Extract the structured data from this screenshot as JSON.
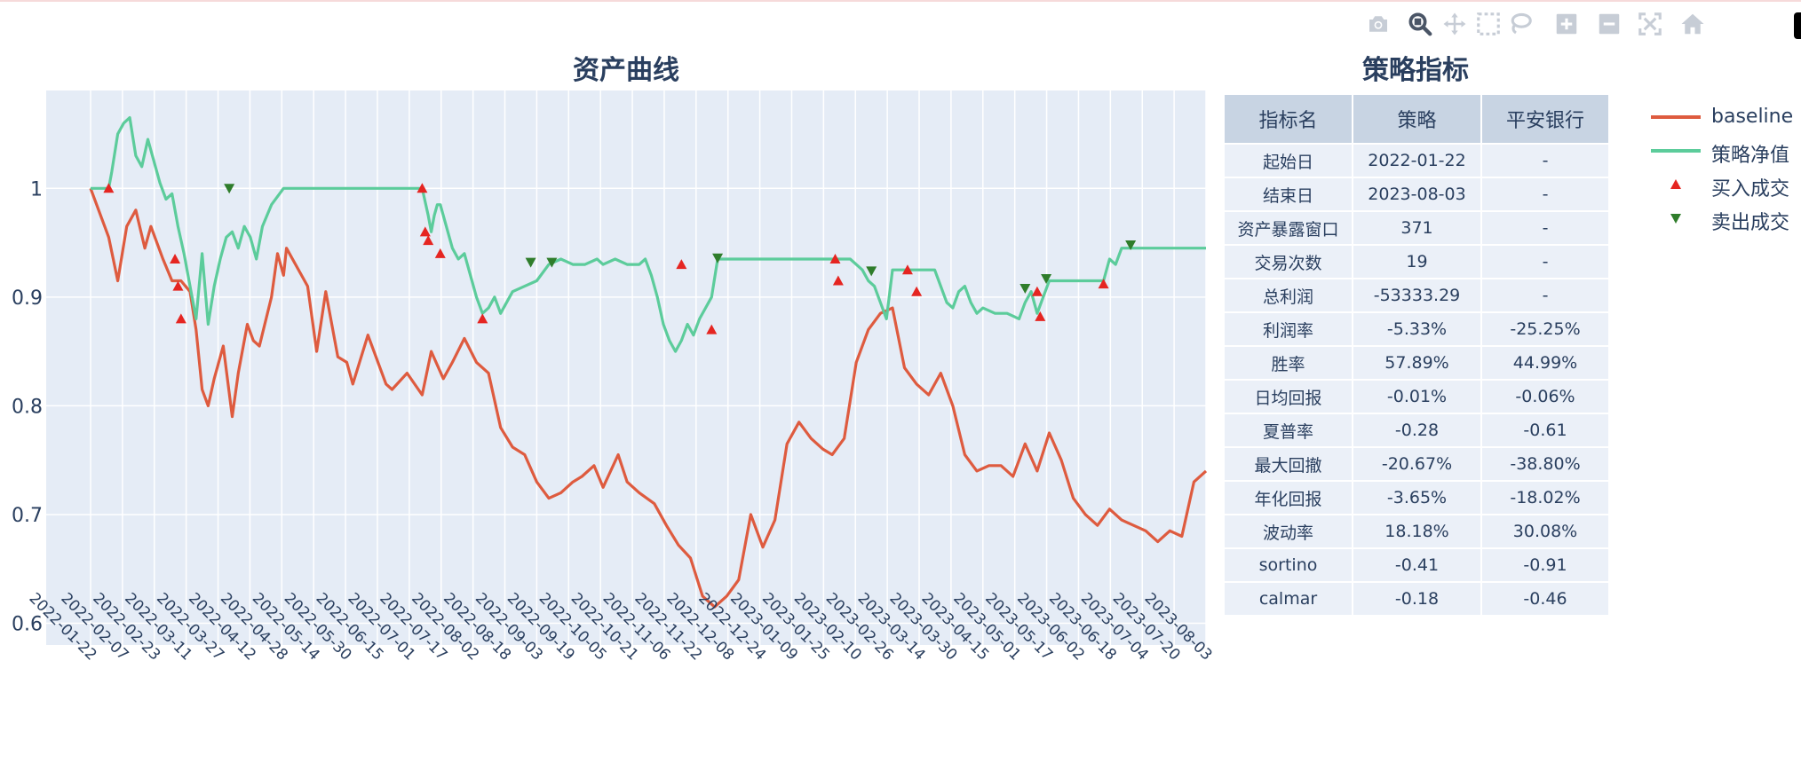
{
  "toolbar": {
    "buttons": [
      {
        "icon": "camera-icon",
        "tip": "Download plot as a png"
      },
      {
        "icon": "zoom-icon",
        "tip": "Zoom"
      },
      {
        "icon": "pan-icon",
        "tip": "Pan"
      },
      {
        "icon": "box-select-icon",
        "tip": "Box Select"
      },
      {
        "icon": "lasso-select-icon",
        "tip": "Lasso Select"
      },
      {
        "icon": "zoom-in-icon",
        "tip": "Zoom in"
      },
      {
        "icon": "zoom-out-icon",
        "tip": "Zoom out"
      },
      {
        "icon": "autoscale-icon",
        "tip": "Autoscale"
      },
      {
        "icon": "home-icon",
        "tip": "Reset axes"
      }
    ]
  },
  "colors": {
    "baseline": "#de5b3f",
    "strategy": "#5ccc9b",
    "buy": "#e52521",
    "sell": "#2f7d2b",
    "plot_bg": "#e5ecf6",
    "grid": "#ffffff",
    "text": "#2a3f5f"
  },
  "chart_data": {
    "type": "line",
    "title": "资产曲线",
    "ylim": [
      0.58,
      1.09
    ],
    "yticks": [
      0.6,
      0.7,
      0.8,
      0.9,
      1
    ],
    "ytick_labels": [
      "0.6",
      "0.7",
      "0.8",
      "0.9",
      "1"
    ],
    "x_start": "2022-01-22",
    "x_end": "2023-08-03",
    "grid": true,
    "legend_position": "right",
    "series": [
      {
        "name": "baseline",
        "key": "baseline",
        "x": [
          0,
          6,
          9,
          12,
          15,
          18,
          20,
          24,
          27,
          30,
          33,
          35,
          37,
          39,
          41,
          44,
          47,
          49,
          52,
          54,
          56,
          60,
          62,
          64,
          65,
          68,
          72,
          75,
          78,
          82,
          85,
          87,
          92,
          98,
          100,
          105,
          110,
          113,
          117,
          120,
          124,
          128,
          132,
          136,
          140,
          144,
          148,
          152,
          156,
          160,
          163,
          167,
          170,
          175,
          178,
          182,
          187,
          191,
          195,
          199,
          203,
          207,
          211,
          215,
          219,
          223,
          227,
          231,
          235,
          239,
          243,
          246,
          250,
          254,
          258,
          262,
          266,
          270,
          274,
          278,
          282,
          286,
          290,
          294,
          298,
          302,
          306,
          310,
          314,
          318,
          322,
          326,
          330,
          334,
          338,
          342,
          346,
          350,
          354,
          358,
          362,
          366,
          370
        ],
        "values": [
          1.0,
          0.955,
          0.915,
          0.965,
          0.98,
          0.945,
          0.965,
          0.935,
          0.915,
          0.915,
          0.905,
          0.87,
          0.815,
          0.8,
          0.825,
          0.855,
          0.79,
          0.83,
          0.875,
          0.86,
          0.855,
          0.9,
          0.94,
          0.92,
          0.945,
          0.93,
          0.91,
          0.85,
          0.905,
          0.845,
          0.84,
          0.82,
          0.865,
          0.82,
          0.815,
          0.83,
          0.81,
          0.85,
          0.825,
          0.84,
          0.862,
          0.84,
          0.83,
          0.78,
          0.762,
          0.755,
          0.73,
          0.715,
          0.72,
          0.73,
          0.735,
          0.745,
          0.725,
          0.755,
          0.73,
          0.72,
          0.71,
          0.69,
          0.672,
          0.66,
          0.625,
          0.615,
          0.625,
          0.64,
          0.7,
          0.67,
          0.695,
          0.765,
          0.785,
          0.77,
          0.76,
          0.755,
          0.77,
          0.84,
          0.87,
          0.885,
          0.89,
          0.835,
          0.82,
          0.81,
          0.83,
          0.8,
          0.755,
          0.74,
          0.745,
          0.745,
          0.735,
          0.765,
          0.74,
          0.775,
          0.75,
          0.715,
          0.7,
          0.69,
          0.705,
          0.695,
          0.69,
          0.685,
          0.675,
          0.685,
          0.68,
          0.73,
          0.74
        ]
      },
      {
        "name": "策略净值",
        "key": "strategy",
        "x": [
          0,
          6,
          7,
          9,
          11,
          13,
          15,
          17,
          19,
          21,
          23,
          25,
          27,
          29,
          31,
          33,
          35,
          37,
          39,
          41,
          43,
          45,
          47,
          49,
          51,
          53,
          55,
          57,
          60,
          64,
          66,
          68,
          72,
          110,
          112,
          113,
          114,
          115,
          116,
          118,
          120,
          122,
          124,
          126,
          128,
          130,
          132,
          134,
          136,
          140,
          144,
          148,
          152,
          156,
          160,
          164,
          168,
          170,
          174,
          178,
          182,
          184,
          186,
          188,
          190,
          192,
          194,
          196,
          198,
          200,
          202,
          204,
          206,
          208,
          210,
          212,
          214,
          218,
          220,
          222,
          224,
          226,
          228,
          230,
          232,
          234,
          236,
          238,
          240,
          242,
          244,
          246,
          248,
          252,
          254,
          256,
          258,
          260,
          264,
          268,
          272,
          276,
          280,
          284,
          288,
          292,
          296,
          300,
          304,
          308,
          312,
          316,
          320,
          324,
          328,
          332,
          340,
          344,
          348,
          352,
          356,
          360,
          364,
          370
        ],
        "values": [
          1.0,
          1.0,
          1.015,
          1.05,
          1.06,
          1.065,
          1.03,
          1.02,
          1.045,
          1.025,
          1.005,
          0.99,
          0.995,
          0.965,
          0.94,
          0.91,
          0.88,
          0.94,
          0.875,
          0.91,
          0.935,
          0.955,
          0.96,
          0.945,
          0.965,
          0.955,
          0.935,
          0.965,
          0.985,
          1.0,
          1.0,
          1.0,
          1.0,
          1.0,
          0.975,
          0.96,
          0.975,
          0.985,
          0.985,
          0.965,
          0.945,
          0.935,
          0.94,
          0.92,
          0.9,
          0.885,
          0.89,
          0.9,
          0.885,
          0.905,
          0.91,
          0.915,
          0.93,
          0.935,
          0.93,
          0.93,
          0.935,
          0.93,
          0.935,
          0.93,
          0.93,
          0.935,
          0.92,
          0.9,
          0.875,
          0.86,
          0.85,
          0.86,
          0.875,
          0.865,
          0.88,
          0.89,
          0.9,
          0.935,
          0.935,
          0.935,
          0.935,
          0.935,
          0.935,
          0.935,
          0.935,
          0.935,
          0.935,
          0.935,
          0.935,
          0.935,
          0.935,
          0.935,
          0.935,
          0.935,
          0.935,
          0.935,
          0.935,
          0.935,
          0.935,
          0.935,
          0.935,
          0.935,
          0.935,
          0.935,
          0.935,
          0.935,
          0.935,
          0.935,
          0.935,
          0.935,
          0.925,
          0.915,
          0.9,
          0.885,
          0.895,
          0.91,
          0.93,
          0.925,
          0.915,
          0.925,
          0.91,
          0.895,
          0.885,
          0.895,
          0.91,
          0.9,
          0.915,
          0.945
        ],
        "tail": [
          {
            "x": 252,
            "y": 0.935
          },
          {
            "x": 254,
            "y": 0.93
          },
          {
            "x": 256,
            "y": 0.925
          },
          {
            "x": 258,
            "y": 0.915
          },
          {
            "x": 260,
            "y": 0.91
          },
          {
            "x": 262,
            "y": 0.895
          },
          {
            "x": 264,
            "y": 0.88
          },
          {
            "x": 266,
            "y": 0.925
          },
          {
            "x": 272,
            "y": 0.925
          },
          {
            "x": 276,
            "y": 0.925
          },
          {
            "x": 280,
            "y": 0.925
          },
          {
            "x": 282,
            "y": 0.91
          },
          {
            "x": 284,
            "y": 0.895
          },
          {
            "x": 286,
            "y": 0.89
          },
          {
            "x": 288,
            "y": 0.905
          },
          {
            "x": 290,
            "y": 0.91
          },
          {
            "x": 292,
            "y": 0.895
          },
          {
            "x": 294,
            "y": 0.885
          },
          {
            "x": 296,
            "y": 0.89
          },
          {
            "x": 300,
            "y": 0.885
          },
          {
            "x": 304,
            "y": 0.885
          },
          {
            "x": 308,
            "y": 0.88
          },
          {
            "x": 310,
            "y": 0.895
          },
          {
            "x": 312,
            "y": 0.905
          },
          {
            "x": 314,
            "y": 0.885
          },
          {
            "x": 316,
            "y": 0.9
          },
          {
            "x": 318,
            "y": 0.915
          },
          {
            "x": 322,
            "y": 0.915
          },
          {
            "x": 330,
            "y": 0.915
          },
          {
            "x": 336,
            "y": 0.915
          },
          {
            "x": 338,
            "y": 0.935
          },
          {
            "x": 340,
            "y": 0.93
          },
          {
            "x": 342,
            "y": 0.945
          },
          {
            "x": 346,
            "y": 0.945
          },
          {
            "x": 370,
            "y": 0.945
          }
        ]
      }
    ],
    "markers": {
      "buy": {
        "name": "买入成交",
        "points": [
          [
            6,
            1.0
          ],
          [
            28,
            0.935
          ],
          [
            29,
            0.91
          ],
          [
            30,
            0.88
          ],
          [
            110,
            1.0
          ],
          [
            111,
            0.96
          ],
          [
            112,
            0.952
          ],
          [
            116,
            0.94
          ],
          [
            130,
            0.88
          ],
          [
            196,
            0.93
          ],
          [
            206,
            0.87
          ],
          [
            247,
            0.935
          ],
          [
            248,
            0.915
          ],
          [
            271,
            0.925
          ],
          [
            274,
            0.905
          ],
          [
            314,
            0.905
          ],
          [
            315,
            0.882
          ],
          [
            336,
            0.912
          ]
        ]
      },
      "sell": {
        "name": "卖出成交",
        "points": [
          [
            46,
            1.0
          ],
          [
            146,
            0.932
          ],
          [
            153,
            0.932
          ],
          [
            208,
            0.936
          ],
          [
            259,
            0.924
          ],
          [
            310,
            0.908
          ],
          [
            317,
            0.917
          ],
          [
            345,
            0.948
          ]
        ]
      }
    },
    "xtick_labels": [
      "2022-01-22",
      "2022-02-07",
      "2022-02-23",
      "2022-03-11",
      "2022-03-27",
      "2022-04-12",
      "2022-04-28",
      "2022-05-14",
      "2022-05-30",
      "2022-06-15",
      "2022-07-01",
      "2022-07-17",
      "2022-08-02",
      "2022-08-18",
      "2022-09-03",
      "2022-09-19",
      "2022-10-05",
      "2022-10-21",
      "2022-11-06",
      "2022-11-22",
      "2022-12-08",
      "2022-12-24",
      "2023-01-09",
      "2023-01-25",
      "2023-02-10",
      "2023-02-26",
      "2023-03-14",
      "2023-03-30",
      "2023-04-15",
      "2023-05-01",
      "2023-05-17",
      "2023-06-02",
      "2023-06-18",
      "2023-07-04",
      "2023-07-20",
      "2023-08-03"
    ]
  },
  "table": {
    "title": "策略指标",
    "headers": [
      "指标名",
      "策略",
      "平安银行"
    ],
    "rows": [
      [
        "起始日",
        "2022-01-22",
        "-"
      ],
      [
        "结束日",
        "2023-08-03",
        "-"
      ],
      [
        "资产暴露窗口",
        "371",
        "-"
      ],
      [
        "交易次数",
        "19",
        "-"
      ],
      [
        "总利润",
        "-53333.29",
        "-"
      ],
      [
        "利润率",
        "-5.33%",
        "-25.25%"
      ],
      [
        "胜率",
        "57.89%",
        "44.99%"
      ],
      [
        "日均回报",
        "-0.01%",
        "-0.06%"
      ],
      [
        "夏普率",
        "-0.28",
        "-0.61"
      ],
      [
        "最大回撤",
        "-20.67%",
        "-38.80%"
      ],
      [
        "年化回报",
        "-3.65%",
        "-18.02%"
      ],
      [
        "波动率",
        "18.18%",
        "30.08%"
      ],
      [
        "sortino",
        "-0.41",
        "-0.91"
      ],
      [
        "calmar",
        "-0.18",
        "-0.46"
      ]
    ]
  },
  "legend": [
    {
      "label": "baseline",
      "type": "line",
      "key": "baseline"
    },
    {
      "label": "策略净值",
      "type": "line",
      "key": "strategy"
    },
    {
      "label": "买入成交",
      "type": "triangle-up",
      "key": "buy"
    },
    {
      "label": "卖出成交",
      "type": "triangle-down",
      "key": "sell"
    }
  ]
}
